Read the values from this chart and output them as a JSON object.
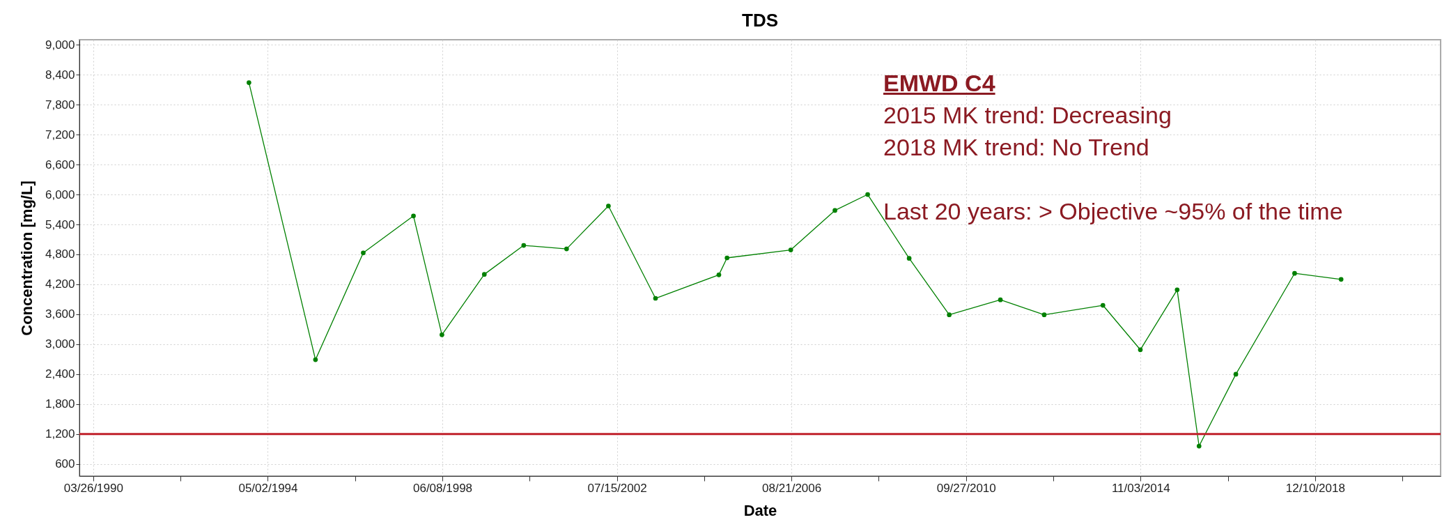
{
  "chart_data": {
    "type": "line",
    "title": "TDS",
    "xlabel": "Date",
    "ylabel": "Concentration [mg/L]",
    "annotations": [
      "EMWD C4",
      "2015 MK trend: Decreasing",
      "2018 MK trend: No Trend",
      "Last 20 years: > Objective ~95% of the time"
    ],
    "x": [
      "1993-11-21",
      "1995-06-15",
      "1996-07-29",
      "1997-10-03",
      "1998-06-04",
      "1999-06-03",
      "2000-05-06",
      "2001-05-09",
      "2002-05-03",
      "2003-06-11",
      "2004-12-06",
      "2005-02-14",
      "2006-08-15",
      "2007-08-29",
      "2008-06-05",
      "2009-05-27",
      "2010-05-06",
      "2011-07-19",
      "2012-07-29",
      "2013-12-15",
      "2014-11-01",
      "2015-09-13",
      "2016-03-19",
      "2017-01-29",
      "2018-06-17",
      "2019-07-21"
    ],
    "series": [
      {
        "color": "#008000",
        "values": [
          8240,
          2690,
          4830,
          5570,
          3190,
          4400,
          4980,
          4910,
          5770,
          3920,
          4390,
          4730,
          4890,
          5680,
          6000,
          4720,
          3590,
          3890,
          3590,
          3780,
          2890,
          4090,
          960,
          2400,
          4420,
          4300
        ]
      }
    ],
    "xlim": [
      "1989-11-27",
      "2021-11-21"
    ],
    "xticks": [
      {
        "value": "1990-03-26",
        "label": "03/26/1990"
      },
      {
        "value": "1992-04-13",
        "label": null
      },
      {
        "value": "1994-05-02",
        "label": "05/02/1994"
      },
      {
        "value": "1996-05-20",
        "label": null
      },
      {
        "value": "1998-06-08",
        "label": "06/08/1998"
      },
      {
        "value": "2000-06-26",
        "label": null
      },
      {
        "value": "2002-07-15",
        "label": "07/15/2002"
      },
      {
        "value": "2004-08-02",
        "label": null
      },
      {
        "value": "2006-08-21",
        "label": "08/21/2006"
      },
      {
        "value": "2008-09-08",
        "label": null
      },
      {
        "value": "2010-09-27",
        "label": "09/27/2010"
      },
      {
        "value": "2012-10-15",
        "label": null
      },
      {
        "value": "2014-11-03",
        "label": "11/03/2014"
      },
      {
        "value": "2016-11-21",
        "label": null
      },
      {
        "value": "2018-12-10",
        "label": "12/10/2018"
      },
      {
        "value": "2020-12-28",
        "label": null
      }
    ],
    "ylim": [
      360,
      9100
    ],
    "yticks": [
      600,
      {
        "value": 1200,
        "label": "1,200"
      },
      {
        "value": 1800,
        "label": "1,800"
      },
      {
        "value": 2400,
        "label": "2,400"
      },
      {
        "value": 3000,
        "label": "3,000"
      },
      {
        "value": 3600,
        "label": "3,600"
      },
      {
        "value": 4200,
        "label": "4,200"
      },
      {
        "value": 4800,
        "label": "4,800"
      },
      {
        "value": 5400,
        "label": "5,400"
      },
      {
        "value": 6000,
        "label": "6,000"
      },
      {
        "value": 6600,
        "label": "6,600"
      },
      {
        "value": 7200,
        "label": "7,200"
      },
      {
        "value": 7800,
        "label": "7,800"
      },
      {
        "value": 8400,
        "label": "8,400"
      },
      {
        "value": 9000,
        "label": "9,000"
      }
    ],
    "ref_lines": [
      {
        "axis": "y",
        "value": 1200,
        "color": "#c0202a"
      }
    ],
    "grid": true,
    "marker": "circle",
    "line_style": "solid"
  }
}
